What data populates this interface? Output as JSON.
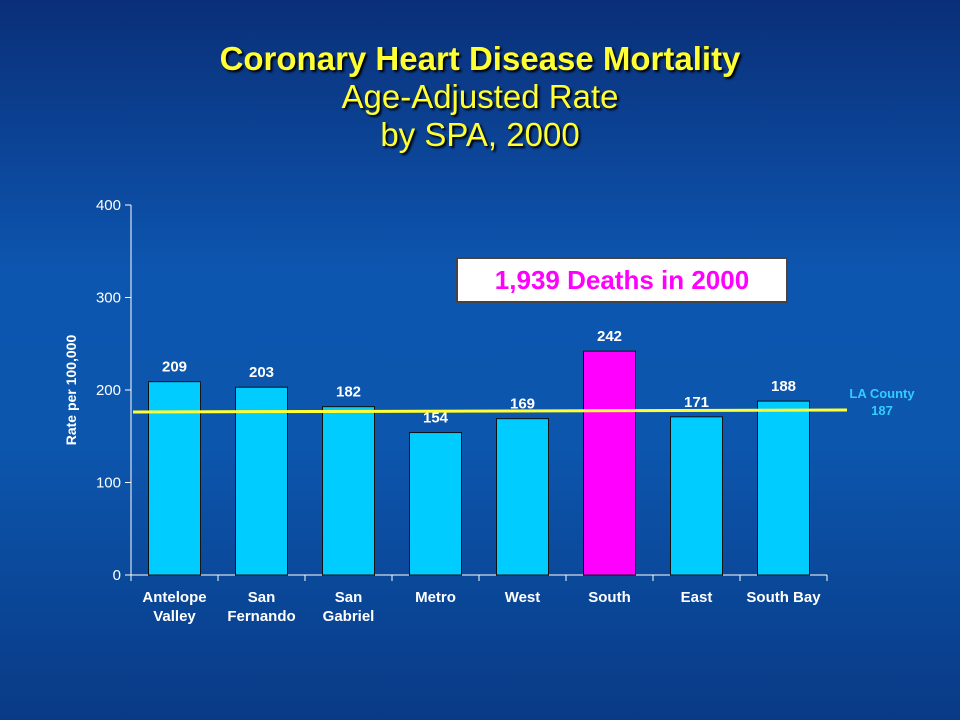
{
  "title": {
    "line1": "Coronary Heart Disease Mortality",
    "line2": "Age-Adjusted Rate",
    "line3": "by SPA, 2000"
  },
  "callout": "1,939 Deaths in 2000",
  "reference_line": {
    "label_line1": "LA County",
    "label_line2": "187",
    "value": 187,
    "color": "#ffff33"
  },
  "colors": {
    "bar": "#00ccff",
    "highlight": "#ff00ff",
    "axis": "#ffffff",
    "data_label": "#ffffff"
  },
  "chart_data": {
    "type": "bar",
    "categories": [
      [
        "Antelope",
        "Valley"
      ],
      [
        "San",
        "Fernando"
      ],
      [
        "San",
        "Gabriel"
      ],
      [
        "Metro"
      ],
      [
        "West"
      ],
      [
        "South"
      ],
      [
        "East"
      ],
      [
        "South Bay"
      ]
    ],
    "values": [
      209,
      203,
      182,
      154,
      169,
      242,
      171,
      188
    ],
    "highlight_index": 5,
    "ylabel": "Rate per 100,000",
    "ylim": [
      0,
      400
    ],
    "yticks": [
      0,
      100,
      200,
      300,
      400
    ],
    "grid": false,
    "legend": "none"
  }
}
